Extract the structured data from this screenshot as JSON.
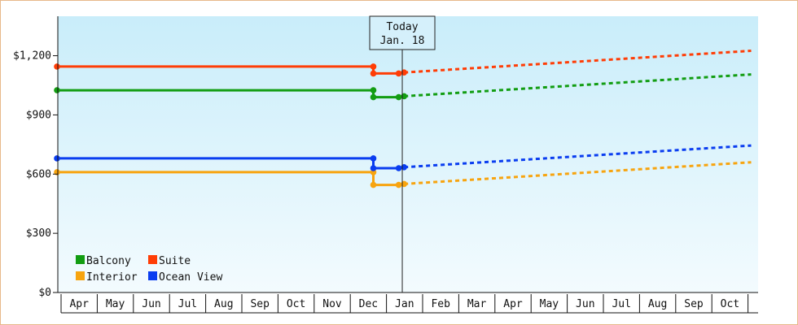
{
  "chart_data": {
    "type": "line",
    "y_axis": {
      "min": 0,
      "max": 1400,
      "ticks": [
        0,
        300,
        600,
        900,
        1200
      ],
      "tick_labels": [
        "$0",
        "$300",
        "$600",
        "$900",
        "$1,200"
      ]
    },
    "x_axis": {
      "months": [
        "Apr",
        "May",
        "Jun",
        "Jul",
        "Aug",
        "Sep",
        "Oct",
        "Nov",
        "Dec",
        "Jan",
        "Feb",
        "Mar",
        "Apr",
        "May",
        "Jun",
        "Jul",
        "Aug",
        "Sep",
        "Oct"
      ],
      "domain": [
        0,
        19.2
      ]
    },
    "today": {
      "line1": "Today",
      "line2": "Jan. 18",
      "position": 9.55
    },
    "series": [
      {
        "name": "Balcony",
        "color": "#129d12",
        "historical": [
          [
            0.0,
            1025
          ],
          [
            8.75,
            1025
          ],
          [
            8.75,
            990
          ],
          [
            9.45,
            990
          ],
          [
            9.6,
            995
          ]
        ],
        "projected": [
          [
            9.6,
            995
          ],
          [
            19.2,
            1105
          ]
        ]
      },
      {
        "name": "Suite",
        "color": "#ff3d06",
        "historical": [
          [
            0.0,
            1145
          ],
          [
            8.75,
            1145
          ],
          [
            8.75,
            1110
          ],
          [
            9.45,
            1110
          ],
          [
            9.6,
            1115
          ]
        ],
        "projected": [
          [
            9.6,
            1115
          ],
          [
            19.2,
            1225
          ]
        ]
      },
      {
        "name": "Interior",
        "color": "#f7a40f",
        "historical": [
          [
            0.0,
            610
          ],
          [
            8.75,
            610
          ],
          [
            8.75,
            545
          ],
          [
            9.45,
            545
          ],
          [
            9.6,
            550
          ]
        ],
        "projected": [
          [
            9.6,
            550
          ],
          [
            19.2,
            660
          ]
        ]
      },
      {
        "name": "Ocean View",
        "color": "#0a3df0",
        "historical": [
          [
            0.0,
            680
          ],
          [
            8.75,
            680
          ],
          [
            8.75,
            630
          ],
          [
            9.45,
            630
          ],
          [
            9.6,
            635
          ]
        ],
        "projected": [
          [
            9.6,
            635
          ],
          [
            19.2,
            745
          ]
        ]
      }
    ],
    "legend": {
      "placement": "bottom-left",
      "rows": [
        [
          "Balcony",
          "Suite"
        ],
        [
          "Interior",
          "Ocean View"
        ]
      ]
    },
    "background_gradient": [
      "#c9edfa",
      "#f3fbfe"
    ]
  }
}
